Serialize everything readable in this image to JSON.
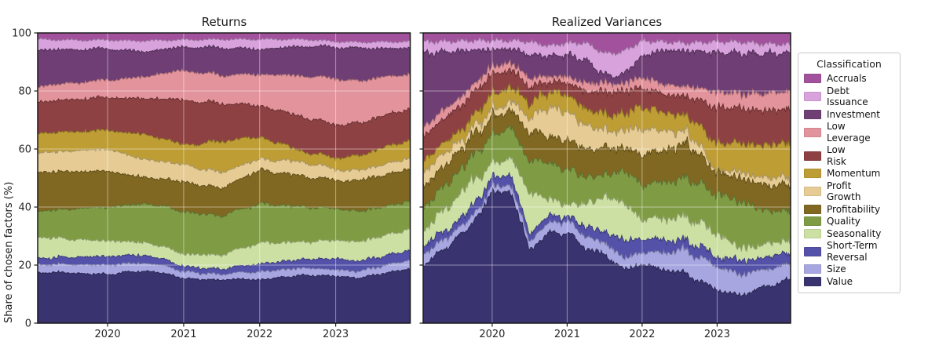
{
  "figure": {
    "background": "#ffffff",
    "spine_color": "#1a1a1a",
    "tick_label_color": "#262626",
    "grid_color": "rgba(255,255,255,0.45)"
  },
  "legend": {
    "title": "Classification",
    "items": [
      {
        "label": "Accruals",
        "color": "#a2529c"
      },
      {
        "label": "Debt\nIssuance",
        "color": "#d8a2dd"
      },
      {
        "label": "Investment",
        "color": "#6e3e74"
      },
      {
        "label": "Low\nLeverage",
        "color": "#e2939b"
      },
      {
        "label": "Low\nRisk",
        "color": "#8e4143"
      },
      {
        "label": "Momentum",
        "color": "#bd9d34"
      },
      {
        "label": "Profit\nGrowth",
        "color": "#e6cc94"
      },
      {
        "label": "Profitability",
        "color": "#816822"
      },
      {
        "label": "Quality",
        "color": "#7f9c45"
      },
      {
        "label": "Seasonality",
        "color": "#cce0a3"
      },
      {
        "label": "Short-Term\nReversal",
        "color": "#5351a8"
      },
      {
        "label": "Size",
        "color": "#a7a6e0"
      },
      {
        "label": "Value",
        "color": "#39336f"
      }
    ]
  },
  "chart_data": [
    {
      "type": "area",
      "stacked": true,
      "title": "Returns",
      "ylabel": "Share of chosen factors (%)",
      "xlabel": "",
      "xlim": [
        2019.08,
        2023.98
      ],
      "ylim": [
        0,
        100
      ],
      "xticks": [
        2020,
        2021,
        2022,
        2023
      ],
      "yticks": [
        0,
        20,
        40,
        60,
        80,
        100
      ],
      "grid": true,
      "texture_jitter": 0.5,
      "stack_order": "bottom_to_top",
      "x": [
        2019.1,
        2019.4,
        2019.7,
        2020.0,
        2020.25,
        2020.5,
        2020.75,
        2021.0,
        2021.25,
        2021.5,
        2021.75,
        2022.0,
        2022.3,
        2022.6,
        2023.0,
        2023.3,
        2023.6,
        2023.95
      ],
      "series": [
        {
          "name": "Value",
          "color": "#39336f",
          "values": [
            17.3,
            17.5,
            17.0,
            16.8,
            17.5,
            18.0,
            17.2,
            15.4,
            15.0,
            14.9,
            15.2,
            14.9,
            15.8,
            16.5,
            16.2,
            15.5,
            17.0,
            18.6
          ]
        },
        {
          "name": "Size",
          "color": "#a7a6e0",
          "values": [
            2.7,
            2.8,
            3.0,
            3.2,
            3.0,
            2.7,
            2.6,
            2.4,
            2.1,
            1.9,
            2.3,
            2.7,
            2.6,
            2.5,
            2.2,
            2.3,
            2.6,
            3.0
          ]
        },
        {
          "name": "Short-Term Reversal",
          "color": "#5351a8",
          "values": [
            2.2,
            2.4,
            2.8,
            3.0,
            2.8,
            2.7,
            2.2,
            1.7,
            1.8,
            1.8,
            2.2,
            2.7,
            2.8,
            3.0,
            3.8,
            3.5,
            3.3,
            3.3
          ]
        },
        {
          "name": "Seasonality",
          "color": "#cce0a3",
          "values": [
            7.3,
            6.5,
            5.8,
            5.4,
            4.8,
            4.4,
            4.3,
            4.3,
            4.6,
            4.9,
            6.0,
            7.3,
            6.5,
            6.0,
            6.4,
            6.7,
            7.0,
            7.3
          ]
        },
        {
          "name": "Quality",
          "color": "#7f9c45",
          "values": [
            8.9,
            10.0,
            11.0,
            11.6,
            12.5,
            13.5,
            14.0,
            14.6,
            14.0,
            13.5,
            13.5,
            13.5,
            12.8,
            12.0,
            10.9,
            10.5,
            10.0,
            9.7
          ]
        },
        {
          "name": "Profitability",
          "color": "#816822",
          "values": [
            13.5,
            13.0,
            12.6,
            12.4,
            10.5,
            8.9,
            9.5,
            10.2,
            9.8,
            9.5,
            10.5,
            11.6,
            11.0,
            10.5,
            9.7,
            10.5,
            11.0,
            10.8
          ]
        },
        {
          "name": "Profit Growth",
          "color": "#e6cc94",
          "values": [
            6.7,
            7.0,
            7.4,
            7.6,
            7.0,
            6.2,
            6.1,
            6.0,
            5.7,
            5.4,
            4.6,
            3.8,
            4.4,
            4.9,
            3.8,
            3.5,
            3.6,
            3.8
          ]
        },
        {
          "name": "Momentum",
          "color": "#bd9d34",
          "values": [
            6.8,
            6.6,
            6.5,
            6.5,
            7.5,
            8.7,
            7.8,
            6.8,
            8.8,
            10.8,
            9.2,
            7.6,
            5.5,
            3.5,
            4.0,
            5.0,
            5.8,
            6.2
          ]
        },
        {
          "name": "Low Risk",
          "color": "#8e4143",
          "values": [
            10.8,
            11.0,
            11.2,
            11.3,
            11.8,
            12.4,
            13.9,
            15.4,
            14.2,
            13.0,
            11.9,
            10.8,
            11.3,
            11.9,
            11.4,
            11.2,
            11.0,
            10.8
          ]
        },
        {
          "name": "Low Leverage",
          "color": "#e2939b",
          "values": [
            5.4,
            5.6,
            5.8,
            6.0,
            6.8,
            7.6,
            8.9,
            10.2,
            10.0,
            9.7,
            10.2,
            10.8,
            12.5,
            14.3,
            15.9,
            14.5,
            13.5,
            11.9
          ]
        },
        {
          "name": "Investment",
          "color": "#6e3e74",
          "values": [
            12.5,
            11.8,
            11.2,
            10.8,
            9.7,
            8.6,
            8.3,
            8.1,
            8.8,
            9.5,
            9.0,
            8.6,
            9.4,
            10.3,
            10.8,
            11.5,
            9.8,
            9.2
          ]
        },
        {
          "name": "Debt Issuance",
          "color": "#d8a2dd",
          "values": [
            3.7,
            3.4,
            3.2,
            3.0,
            3.4,
            3.8,
            3.1,
            2.5,
            2.7,
            2.9,
            3.2,
            3.5,
            2.9,
            2.4,
            1.9,
            2.1,
            2.2,
            2.4
          ]
        },
        {
          "name": "Accruals",
          "color": "#a2529c",
          "values": [
            2.2,
            2.4,
            2.5,
            2.4,
            2.7,
            2.7,
            2.5,
            2.4,
            2.3,
            2.2,
            2.2,
            2.2,
            2.2,
            2.2,
            3.0,
            3.2,
            3.1,
            3.0
          ]
        }
      ]
    },
    {
      "type": "area",
      "stacked": true,
      "title": "Realized Variances",
      "ylabel": "Share of chosen factors (%)",
      "xlabel": "",
      "xlim": [
        2019.08,
        2023.98
      ],
      "ylim": [
        0,
        100
      ],
      "xticks": [
        2020,
        2021,
        2022,
        2023
      ],
      "yticks": [
        0,
        20,
        40,
        60,
        80,
        100
      ],
      "grid": true,
      "texture_jitter": 1.2,
      "stack_order": "bottom_to_top",
      "x": [
        2019.1,
        2019.4,
        2019.7,
        2020.0,
        2020.25,
        2020.5,
        2020.75,
        2021.0,
        2021.25,
        2021.5,
        2021.75,
        2022.0,
        2022.3,
        2022.6,
        2023.0,
        2023.3,
        2023.6,
        2023.95
      ],
      "series": [
        {
          "name": "Value",
          "color": "#39336f",
          "values": [
            20.3,
            26.0,
            32.0,
            44.6,
            46.0,
            25.0,
            31.0,
            31.0,
            26.0,
            23.0,
            17.6,
            19.5,
            18.5,
            16.8,
            11.4,
            9.5,
            12.0,
            14.9
          ]
        },
        {
          "name": "Size",
          "color": "#a7a6e0",
          "values": [
            3.8,
            3.2,
            2.5,
            1.9,
            2.5,
            3.0,
            3.5,
            4.0,
            4.0,
            4.0,
            3.8,
            4.0,
            6.0,
            8.1,
            8.1,
            7.3,
            6.0,
            5.4
          ]
        },
        {
          "name": "Short-Term Reversal",
          "color": "#5351a8",
          "values": [
            2.7,
            2.7,
            3.0,
            3.5,
            3.0,
            3.0,
            2.0,
            2.0,
            3.0,
            4.1,
            5.4,
            4.9,
            4.0,
            3.5,
            3.5,
            4.6,
            4.2,
            3.8
          ]
        },
        {
          "name": "Seasonality",
          "color": "#cce0a3",
          "values": [
            5.4,
            7.5,
            8.9,
            4.6,
            6.0,
            14.0,
            6.0,
            4.0,
            8.0,
            11.9,
            12.4,
            6.5,
            7.5,
            8.1,
            8.1,
            4.3,
            4.5,
            4.3
          ]
        },
        {
          "name": "Quality",
          "color": "#7f9c45",
          "values": [
            8.1,
            8.1,
            8.1,
            10.0,
            10.5,
            11.0,
            12.5,
            12.0,
            9.5,
            7.0,
            10.8,
            11.6,
            12.5,
            13.5,
            13.5,
            16.3,
            12.0,
            10.0
          ]
        },
        {
          "name": "Profitability",
          "color": "#816822",
          "values": [
            7.0,
            6.8,
            6.5,
            6.2,
            6.0,
            10.0,
            9.0,
            10.0,
            9.5,
            9.2,
            7.3,
            10.0,
            11.0,
            11.9,
            7.3,
            8.0,
            8.5,
            8.9
          ]
        },
        {
          "name": "Profit Growth",
          "color": "#e6cc94",
          "values": [
            5.4,
            4.0,
            2.7,
            2.7,
            3.0,
            5.0,
            9.7,
            10.0,
            8.0,
            6.2,
            5.4,
            8.9,
            6.5,
            4.3,
            0.8,
            2.0,
            2.5,
            2.7
          ]
        },
        {
          "name": "Momentum",
          "color": "#bd9d34",
          "values": [
            3.8,
            3.6,
            3.5,
            5.4,
            5.0,
            5.0,
            5.4,
            6.0,
            5.7,
            5.4,
            5.4,
            7.3,
            6.3,
            5.4,
            9.2,
            10.0,
            11.0,
            11.9
          ]
        },
        {
          "name": "Low Risk",
          "color": "#8e4143",
          "values": [
            8.4,
            8.2,
            8.1,
            6.8,
            6.0,
            5.5,
            3.3,
            4.0,
            6.0,
            7.5,
            7.5,
            6.2,
            6.4,
            6.5,
            12.4,
            12.0,
            11.8,
            11.6
          ]
        },
        {
          "name": "Low Leverage",
          "color": "#e2939b",
          "values": [
            3.2,
            3.0,
            2.7,
            2.7,
            2.5,
            3.0,
            2.0,
            2.0,
            3.0,
            3.0,
            2.5,
            3.6,
            3.4,
            3.5,
            5.4,
            5.0,
            5.8,
            6.2
          ]
        },
        {
          "name": "Investment",
          "color": "#6e3e74",
          "values": [
            24.9,
            19.0,
            13.0,
            5.8,
            5.0,
            8.0,
            7.0,
            7.5,
            8.0,
            2.5,
            3.0,
            7.0,
            11.9,
            12.2,
            13.5,
            14.0,
            13.6,
            13.3
          ]
        },
        {
          "name": "Debt Issuance",
          "color": "#d8a2dd",
          "values": [
            4.0,
            3.5,
            3.2,
            3.2,
            2.8,
            4.5,
            3.5,
            4.0,
            6.0,
            7.3,
            7.6,
            5.0,
            2.9,
            2.7,
            3.8,
            3.9,
            3.4,
            3.0
          ]
        },
        {
          "name": "Accruals",
          "color": "#a2529c",
          "values": [
            3.0,
            2.9,
            2.6,
            2.6,
            2.7,
            3.0,
            4.5,
            3.5,
            3.5,
            7.0,
            6.2,
            2.7,
            3.1,
            3.5,
            3.0,
            3.1,
            3.7,
            4.0
          ]
        }
      ]
    }
  ]
}
